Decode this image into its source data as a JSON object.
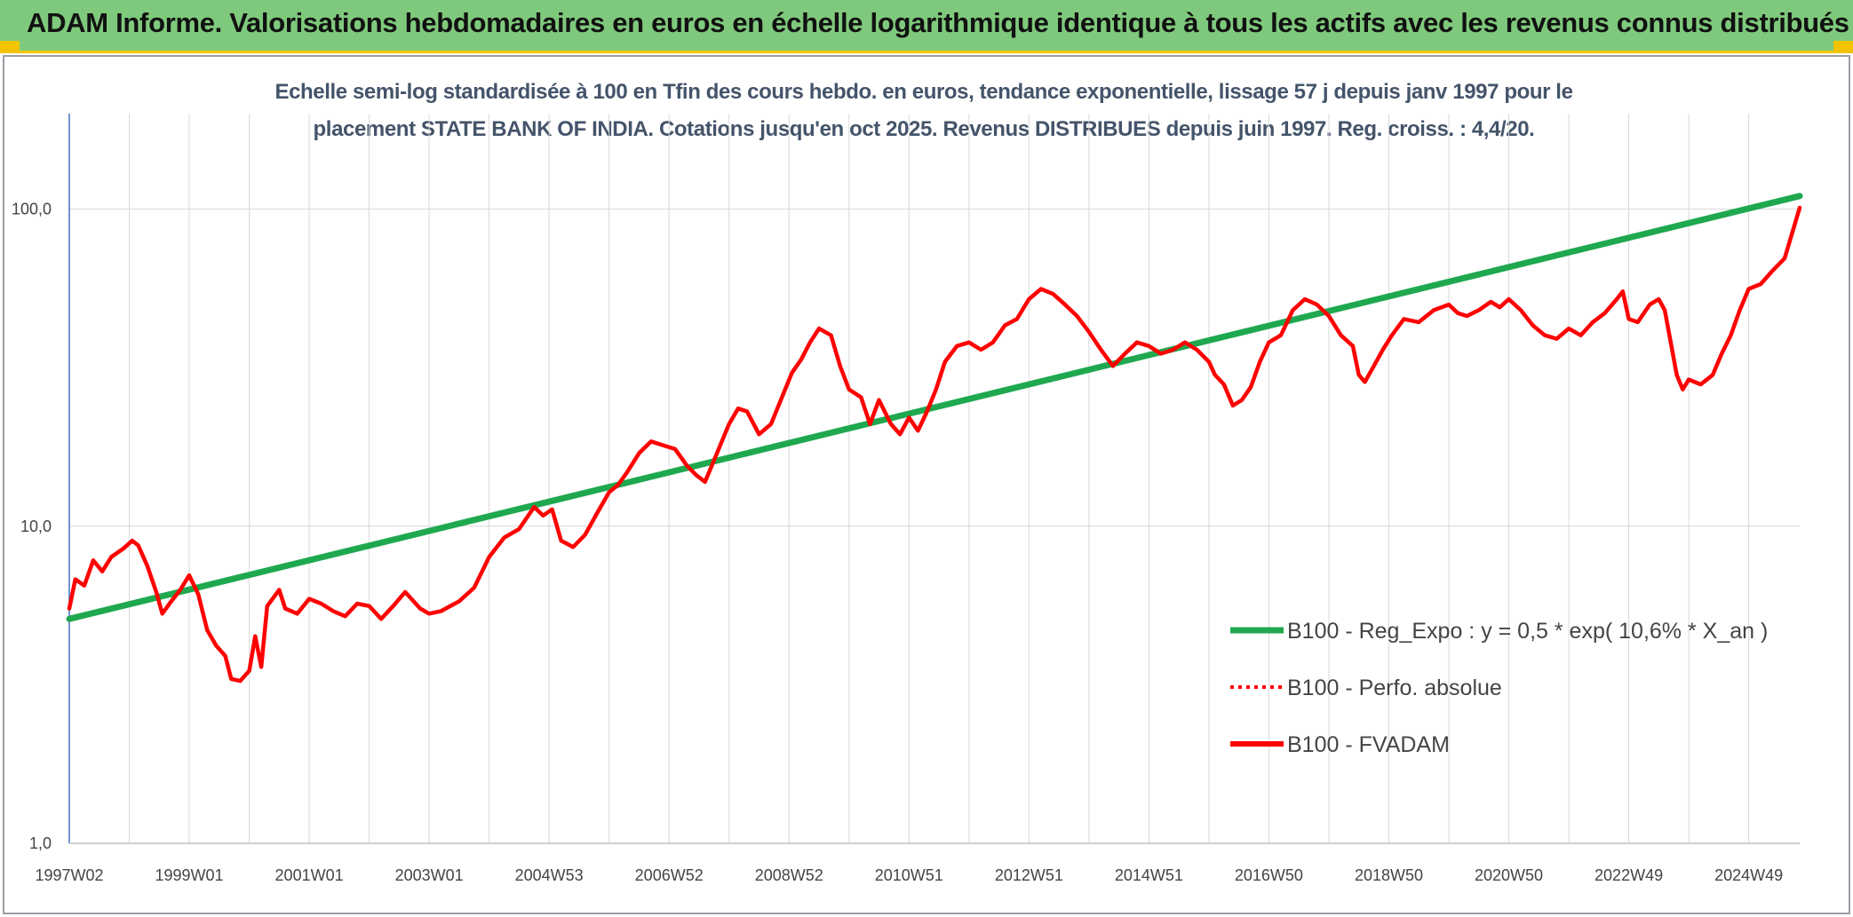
{
  "header": {
    "title": "ADAM Informe. Valorisations hebdomadaires en euros en échelle logarithmique identique à tous les actifs avec les revenus connus distribués"
  },
  "chart_data": {
    "type": "line",
    "title_line1": "Echelle semi-log standardisée à 100 en Tfin des cours hebdo. en euros, tendance exponentielle, lissage 57 j depuis janv 1997 pour le",
    "title_line2": "placement STATE BANK OF INDIA. Cotations jusqu'en oct 2025. Revenus DISTRIBUES depuis juin 1997. Reg. croiss. : 4,4/20.",
    "y_scale": "log",
    "ylim": [
      1,
      200
    ],
    "xlim": [
      1997.0,
      2025.85
    ],
    "y_ticks": [
      {
        "value": 100,
        "label": "100,0"
      },
      {
        "value": 10,
        "label": "10,0"
      },
      {
        "value": 1,
        "label": "1,0"
      }
    ],
    "x_ticks": [
      {
        "value": 1997.0,
        "label": "1997W02"
      },
      {
        "value": 1999.0,
        "label": "1999W01"
      },
      {
        "value": 2001.0,
        "label": "2001W01"
      },
      {
        "value": 2003.0,
        "label": "2003W01"
      },
      {
        "value": 2005.0,
        "label": "2004W53"
      },
      {
        "value": 2007.0,
        "label": "2006W52"
      },
      {
        "value": 2009.0,
        "label": "2008W52"
      },
      {
        "value": 2011.0,
        "label": "2010W51"
      },
      {
        "value": 2013.0,
        "label": "2012W51"
      },
      {
        "value": 2015.0,
        "label": "2014W51"
      },
      {
        "value": 2017.0,
        "label": "2016W50"
      },
      {
        "value": 2019.0,
        "label": "2018W50"
      },
      {
        "value": 2021.0,
        "label": "2020W50"
      },
      {
        "value": 2023.0,
        "label": "2022W49"
      },
      {
        "value": 2025.0,
        "label": "2024W49"
      }
    ],
    "grid": true,
    "legend_position": "bottom-right",
    "series": [
      {
        "name": "B100 - Reg_Expo : y = 0,5 * exp( 10,6% *  X_an )",
        "color": "#1fa84f",
        "style": "solid",
        "points": [
          [
            1997.0,
            5.1
          ],
          [
            2025.85,
            110
          ]
        ]
      },
      {
        "name": "B100 - Perfo. absolue",
        "color": "#ff0000",
        "style": "dotted",
        "points": []
      },
      {
        "name": "B100 - FVADAM",
        "color": "#ff0000",
        "style": "solid",
        "points": [
          [
            1997.0,
            5.5
          ],
          [
            1997.1,
            6.8
          ],
          [
            1997.25,
            6.5
          ],
          [
            1997.4,
            7.8
          ],
          [
            1997.55,
            7.2
          ],
          [
            1997.7,
            8.0
          ],
          [
            1997.9,
            8.5
          ],
          [
            1998.05,
            9.0
          ],
          [
            1998.15,
            8.7
          ],
          [
            1998.3,
            7.5
          ],
          [
            1998.45,
            6.2
          ],
          [
            1998.55,
            5.3
          ],
          [
            1998.7,
            5.8
          ],
          [
            1998.85,
            6.3
          ],
          [
            1999.0,
            7.0
          ],
          [
            1999.15,
            6.1
          ],
          [
            1999.3,
            4.7
          ],
          [
            1999.45,
            4.2
          ],
          [
            1999.6,
            3.9
          ],
          [
            1999.7,
            3.3
          ],
          [
            1999.85,
            3.25
          ],
          [
            2000.0,
            3.5
          ],
          [
            2000.1,
            4.5
          ],
          [
            2000.2,
            3.6
          ],
          [
            2000.3,
            5.6
          ],
          [
            2000.5,
            6.3
          ],
          [
            2000.6,
            5.5
          ],
          [
            2000.8,
            5.3
          ],
          [
            2001.0,
            5.9
          ],
          [
            2001.2,
            5.7
          ],
          [
            2001.4,
            5.4
          ],
          [
            2001.6,
            5.2
          ],
          [
            2001.8,
            5.7
          ],
          [
            2002.0,
            5.6
          ],
          [
            2002.2,
            5.1
          ],
          [
            2002.4,
            5.6
          ],
          [
            2002.6,
            6.2
          ],
          [
            2002.85,
            5.5
          ],
          [
            2003.0,
            5.3
          ],
          [
            2003.2,
            5.4
          ],
          [
            2003.5,
            5.8
          ],
          [
            2003.75,
            6.4
          ],
          [
            2004.0,
            8.0
          ],
          [
            2004.25,
            9.2
          ],
          [
            2004.5,
            9.8
          ],
          [
            2004.75,
            11.5
          ],
          [
            2004.9,
            10.8
          ],
          [
            2005.05,
            11.3
          ],
          [
            2005.2,
            9.0
          ],
          [
            2005.4,
            8.6
          ],
          [
            2005.6,
            9.4
          ],
          [
            2005.8,
            11.0
          ],
          [
            2006.0,
            12.8
          ],
          [
            2006.15,
            13.5
          ],
          [
            2006.3,
            14.8
          ],
          [
            2006.5,
            17.0
          ],
          [
            2006.7,
            18.5
          ],
          [
            2006.9,
            18.0
          ],
          [
            2007.1,
            17.5
          ],
          [
            2007.3,
            15.5
          ],
          [
            2007.45,
            14.5
          ],
          [
            2007.6,
            13.8
          ],
          [
            2007.8,
            17.0
          ],
          [
            2008.0,
            21.0
          ],
          [
            2008.15,
            23.5
          ],
          [
            2008.3,
            23.0
          ],
          [
            2008.5,
            19.5
          ],
          [
            2008.7,
            21.0
          ],
          [
            2008.9,
            26.0
          ],
          [
            2009.05,
            30.5
          ],
          [
            2009.2,
            33.5
          ],
          [
            2009.35,
            38.0
          ],
          [
            2009.5,
            42.0
          ],
          [
            2009.7,
            40.0
          ],
          [
            2009.85,
            32.0
          ],
          [
            2010.0,
            27.0
          ],
          [
            2010.2,
            25.5
          ],
          [
            2010.35,
            21.0
          ],
          [
            2010.5,
            25.0
          ],
          [
            2010.7,
            21.0
          ],
          [
            2010.85,
            19.5
          ],
          [
            2011.0,
            22.0
          ],
          [
            2011.15,
            20.0
          ],
          [
            2011.3,
            23.0
          ],
          [
            2011.45,
            27.0
          ],
          [
            2011.6,
            33.0
          ],
          [
            2011.8,
            37.0
          ],
          [
            2012.0,
            38.0
          ],
          [
            2012.2,
            36.0
          ],
          [
            2012.4,
            38.0
          ],
          [
            2012.6,
            43.0
          ],
          [
            2012.8,
            45.0
          ],
          [
            2013.0,
            52.0
          ],
          [
            2013.2,
            56.0
          ],
          [
            2013.4,
            54.0
          ],
          [
            2013.6,
            50.0
          ],
          [
            2013.8,
            46.0
          ],
          [
            2014.0,
            41.0
          ],
          [
            2014.2,
            36.0
          ],
          [
            2014.4,
            32.0
          ],
          [
            2014.6,
            35.0
          ],
          [
            2014.8,
            38.0
          ],
          [
            2015.0,
            37.0
          ],
          [
            2015.2,
            35.0
          ],
          [
            2015.4,
            36.0
          ],
          [
            2015.6,
            38.0
          ],
          [
            2015.8,
            36.0
          ],
          [
            2016.0,
            33.0
          ],
          [
            2016.1,
            30.0
          ],
          [
            2016.25,
            28.0
          ],
          [
            2016.4,
            24.0
          ],
          [
            2016.55,
            25.0
          ],
          [
            2016.7,
            27.5
          ],
          [
            2016.85,
            33.0
          ],
          [
            2017.0,
            38.0
          ],
          [
            2017.2,
            40.0
          ],
          [
            2017.4,
            48.0
          ],
          [
            2017.6,
            52.0
          ],
          [
            2017.8,
            50.0
          ],
          [
            2018.0,
            46.0
          ],
          [
            2018.2,
            40.0
          ],
          [
            2018.4,
            37.0
          ],
          [
            2018.5,
            30.0
          ],
          [
            2018.6,
            28.5
          ],
          [
            2018.75,
            32.0
          ],
          [
            2018.9,
            36.0
          ],
          [
            2019.05,
            40.0
          ],
          [
            2019.25,
            45.0
          ],
          [
            2019.5,
            44.0
          ],
          [
            2019.75,
            48.0
          ],
          [
            2020.0,
            50.0
          ],
          [
            2020.15,
            47.0
          ],
          [
            2020.3,
            46.0
          ],
          [
            2020.5,
            48.0
          ],
          [
            2020.7,
            51.0
          ],
          [
            2020.85,
            49.0
          ],
          [
            2021.0,
            52.0
          ],
          [
            2021.2,
            48.0
          ],
          [
            2021.4,
            43.0
          ],
          [
            2021.6,
            40.0
          ],
          [
            2021.8,
            39.0
          ],
          [
            2022.0,
            42.0
          ],
          [
            2022.2,
            40.0
          ],
          [
            2022.4,
            44.0
          ],
          [
            2022.6,
            47.0
          ],
          [
            2022.8,
            52.0
          ],
          [
            2022.9,
            55.0
          ],
          [
            2023.0,
            45.0
          ],
          [
            2023.15,
            44.0
          ],
          [
            2023.35,
            50.0
          ],
          [
            2023.5,
            52.0
          ],
          [
            2023.6,
            48.0
          ],
          [
            2023.8,
            30.0
          ],
          [
            2023.9,
            27.0
          ],
          [
            2024.0,
            29.0
          ],
          [
            2024.2,
            28.0
          ],
          [
            2024.4,
            30.0
          ],
          [
            2024.55,
            35.0
          ],
          [
            2024.7,
            40.0
          ],
          [
            2024.85,
            48.0
          ],
          [
            2025.0,
            56.0
          ],
          [
            2025.2,
            58.0
          ],
          [
            2025.4,
            64.0
          ],
          [
            2025.6,
            70.0
          ],
          [
            2025.85,
            101.0
          ]
        ]
      }
    ]
  }
}
